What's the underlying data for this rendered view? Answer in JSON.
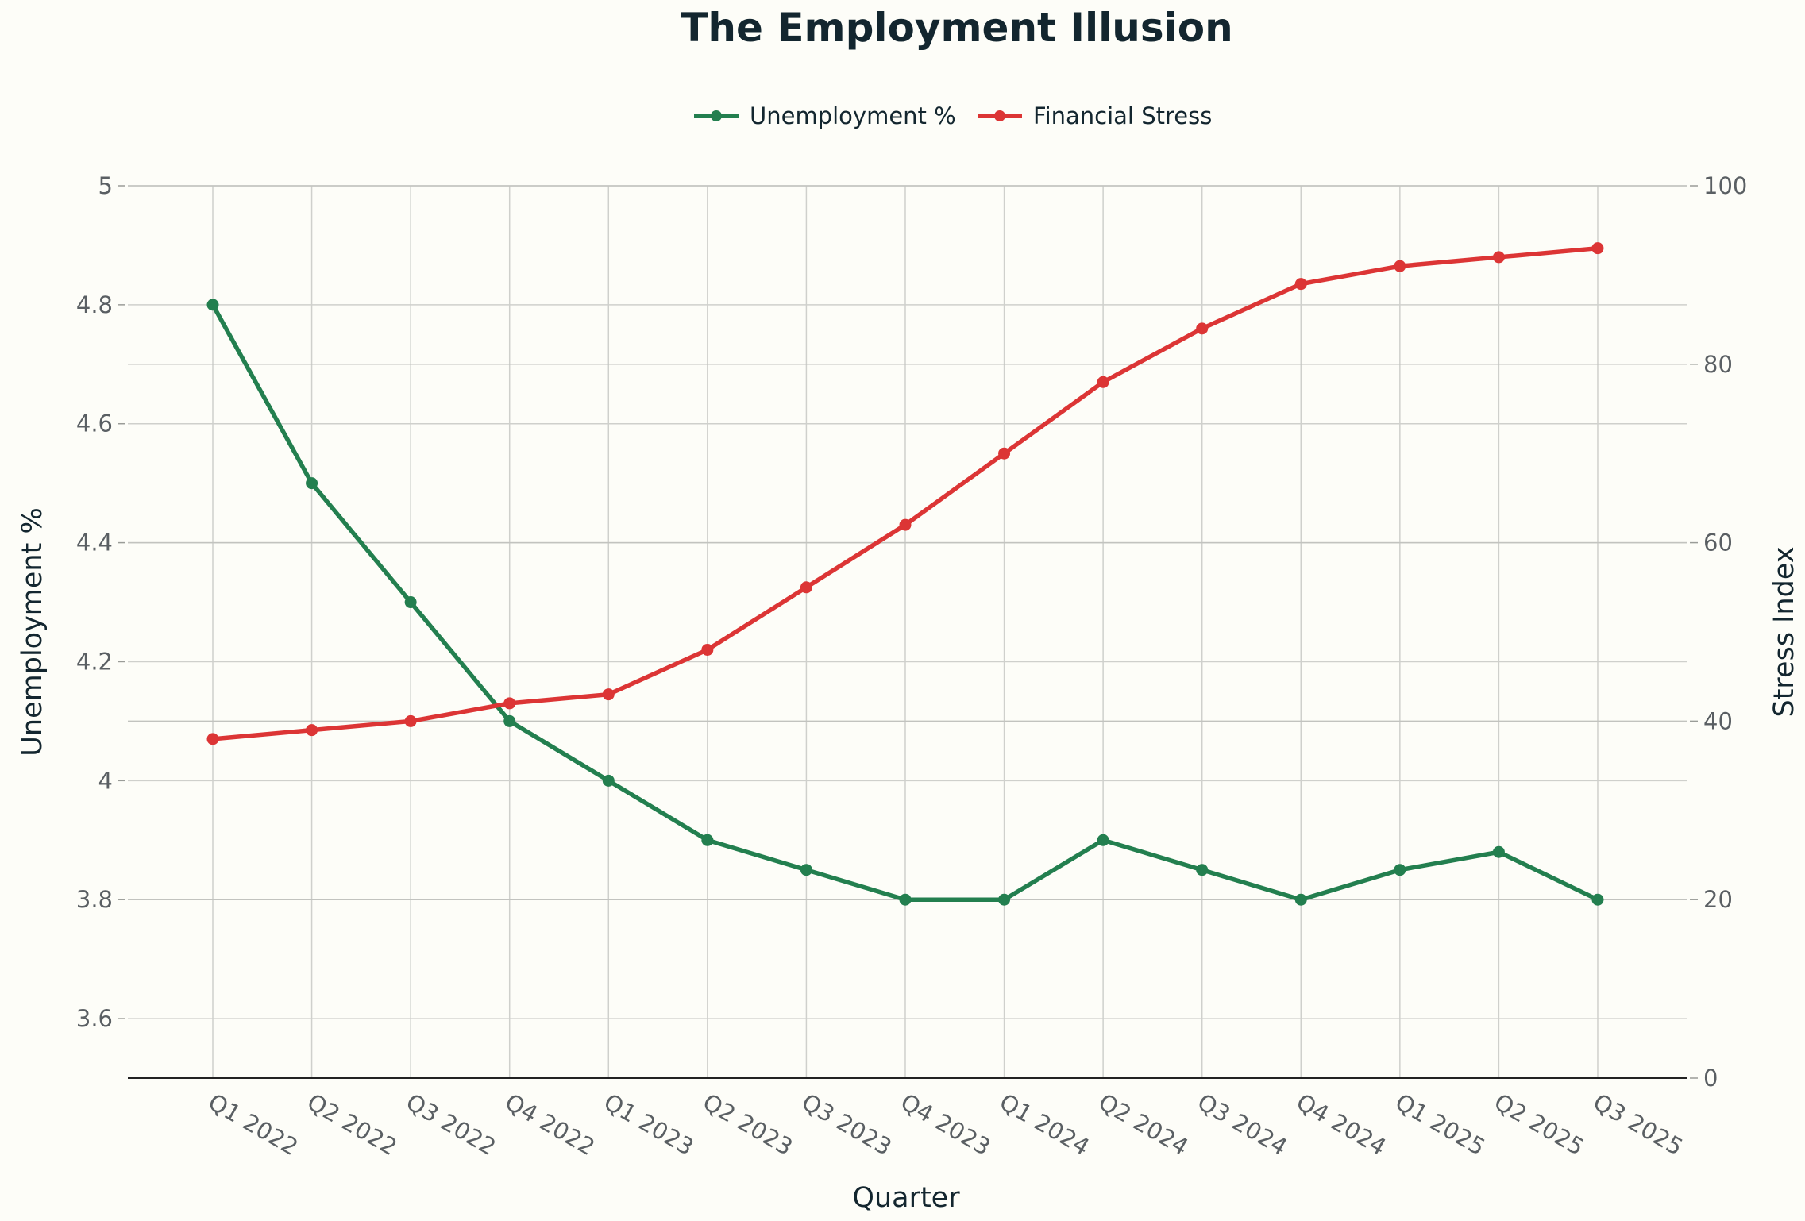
{
  "chart_data": {
    "type": "line",
    "title": "The Employment Illusion",
    "xlabel": "Quarter",
    "ylabel": "Unemployment %",
    "y2label": "Stress Index",
    "categories": [
      "Q1 2022",
      "Q2 2022",
      "Q3 2022",
      "Q4 2022",
      "Q1 2023",
      "Q2 2023",
      "Q3 2023",
      "Q4 2023",
      "Q1 2024",
      "Q2 2024",
      "Q3 2024",
      "Q4 2024",
      "Q1 2025",
      "Q2 2025",
      "Q3 2025"
    ],
    "ylim": [
      3.5,
      5
    ],
    "y_ticks": [
      "3.6",
      "3.8",
      "4",
      "4.2",
      "4.4",
      "4.6",
      "4.8",
      "5"
    ],
    "y2lim": [
      0,
      100
    ],
    "y2_ticks": [
      "0",
      "20",
      "40",
      "60",
      "80",
      "100"
    ],
    "grid": true,
    "legend_position": "top-center",
    "series": [
      {
        "name": "Unemployment %",
        "axis": "left",
        "color": "#237f4f",
        "values": [
          4.8,
          4.5,
          4.3,
          4.1,
          4.0,
          3.9,
          3.85,
          3.8,
          3.8,
          3.9,
          3.85,
          3.8,
          3.85,
          3.88,
          3.8
        ]
      },
      {
        "name": "Financial Stress",
        "axis": "right",
        "color": "#dc3535",
        "values": [
          38,
          39,
          40,
          42,
          43,
          48,
          55,
          62,
          70,
          78,
          84,
          89,
          91,
          92,
          93
        ]
      }
    ]
  }
}
